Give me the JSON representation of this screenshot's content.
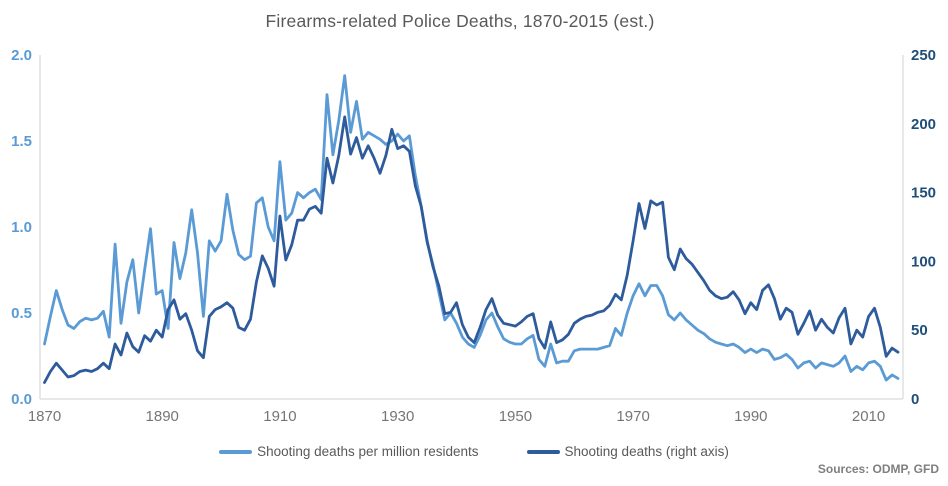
{
  "title": "Firearms-related Police Deaths, 1870-2015 (est.)",
  "source_note": "Sources: ODMP, GFD",
  "colors": {
    "series_light_blue": "#5B9BD5",
    "series_dark_blue": "#2E5B9C",
    "left_tick_text": "#5B9BD5",
    "right_tick_text": "#1F4E79",
    "x_tick_text": "#767676",
    "title_text": "#595959",
    "legend_text": "#595959",
    "source_text": "#7F7F7F",
    "axis_line": "#D9D9D9",
    "background": "#FFFFFF"
  },
  "legend": [
    {
      "label": "Shooting deaths per million residents",
      "color_key": "series_light_blue"
    },
    {
      "label": "Shooting deaths (right axis)",
      "color_key": "series_dark_blue"
    }
  ],
  "chart_data": {
    "type": "line",
    "title": "Firearms-related Police Deaths, 1870-2015 (est.)",
    "grid": false,
    "legend_position": "bottom",
    "x_axis": {
      "range": [
        1870,
        2015
      ],
      "interval": 1,
      "ticks": [
        1870,
        1890,
        1910,
        1930,
        1950,
        1970,
        1990,
        2010
      ]
    },
    "left_axis": {
      "range": [
        0,
        2
      ],
      "ticks": [
        0,
        0.5,
        1,
        1.5,
        2
      ],
      "labels": [
        "0.0",
        "0.5",
        "1.0",
        "1.5",
        "2.0"
      ]
    },
    "right_axis": {
      "range": [
        0,
        250
      ],
      "ticks": [
        0,
        50,
        100,
        150,
        200,
        250
      ],
      "labels": [
        "0",
        "50",
        "100",
        "150",
        "200",
        "250"
      ]
    },
    "series": [
      {
        "name": "Shooting deaths per million residents",
        "axis": "left",
        "color_key": "series_light_blue",
        "values": [
          0.32,
          0.48,
          0.63,
          0.52,
          0.43,
          0.41,
          0.45,
          0.47,
          0.46,
          0.47,
          0.51,
          0.36,
          0.9,
          0.44,
          0.68,
          0.81,
          0.5,
          0.75,
          0.99,
          0.61,
          0.63,
          0.41,
          0.91,
          0.7,
          0.85,
          1.1,
          0.85,
          0.48,
          0.92,
          0.86,
          0.92,
          1.19,
          0.98,
          0.84,
          0.81,
          0.83,
          1.14,
          1.17,
          1.0,
          0.92,
          1.38,
          1.04,
          1.08,
          1.2,
          1.17,
          1.2,
          1.22,
          1.16,
          1.77,
          1.42,
          1.62,
          1.88,
          1.55,
          1.73,
          1.51,
          1.55,
          1.53,
          1.51,
          1.48,
          1.5,
          1.54,
          1.5,
          1.53,
          1.3,
          1.12,
          0.91,
          0.78,
          0.62,
          0.46,
          0.5,
          0.44,
          0.36,
          0.32,
          0.3,
          0.37,
          0.46,
          0.5,
          0.42,
          0.35,
          0.33,
          0.32,
          0.32,
          0.35,
          0.37,
          0.23,
          0.19,
          0.32,
          0.21,
          0.22,
          0.22,
          0.28,
          0.29,
          0.29,
          0.29,
          0.29,
          0.3,
          0.31,
          0.41,
          0.37,
          0.5,
          0.6,
          0.67,
          0.6,
          0.66,
          0.66,
          0.6,
          0.49,
          0.46,
          0.5,
          0.46,
          0.43,
          0.4,
          0.38,
          0.35,
          0.33,
          0.32,
          0.31,
          0.32,
          0.3,
          0.27,
          0.29,
          0.27,
          0.29,
          0.28,
          0.23,
          0.24,
          0.26,
          0.23,
          0.18,
          0.21,
          0.22,
          0.18,
          0.21,
          0.2,
          0.19,
          0.21,
          0.25,
          0.16,
          0.19,
          0.17,
          0.21,
          0.22,
          0.19,
          0.11,
          0.14,
          0.12
        ]
      },
      {
        "name": "Shooting deaths (right axis)",
        "axis": "right",
        "color_key": "series_dark_blue",
        "values": [
          12,
          20,
          26,
          21,
          16,
          17,
          20,
          21,
          20,
          22,
          26,
          22,
          40,
          32,
          48,
          38,
          34,
          46,
          42,
          50,
          45,
          65,
          72,
          58,
          62,
          50,
          35,
          30,
          60,
          65,
          67,
          70,
          66,
          52,
          50,
          58,
          85,
          104,
          95,
          82,
          133,
          101,
          112,
          130,
          130,
          138,
          140,
          135,
          175,
          157,
          177,
          205,
          178,
          190,
          175,
          184,
          175,
          164,
          177,
          196,
          182,
          184,
          180,
          155,
          140,
          115,
          96,
          82,
          62,
          63,
          70,
          54,
          45,
          41,
          52,
          65,
          73,
          61,
          55,
          54,
          53,
          56,
          60,
          62,
          44,
          37,
          56,
          41,
          43,
          47,
          55,
          58,
          60,
          61,
          63,
          64,
          68,
          76,
          72,
          90,
          115,
          142,
          124,
          144,
          141,
          143,
          103,
          94,
          109,
          102,
          98,
          92,
          86,
          79,
          75,
          73,
          74,
          78,
          72,
          62,
          70,
          65,
          79,
          83,
          73,
          58,
          66,
          63,
          47,
          55,
          64,
          50,
          58,
          52,
          48,
          59,
          66,
          40,
          50,
          45,
          60,
          66,
          52,
          31,
          37,
          34
        ]
      }
    ]
  }
}
